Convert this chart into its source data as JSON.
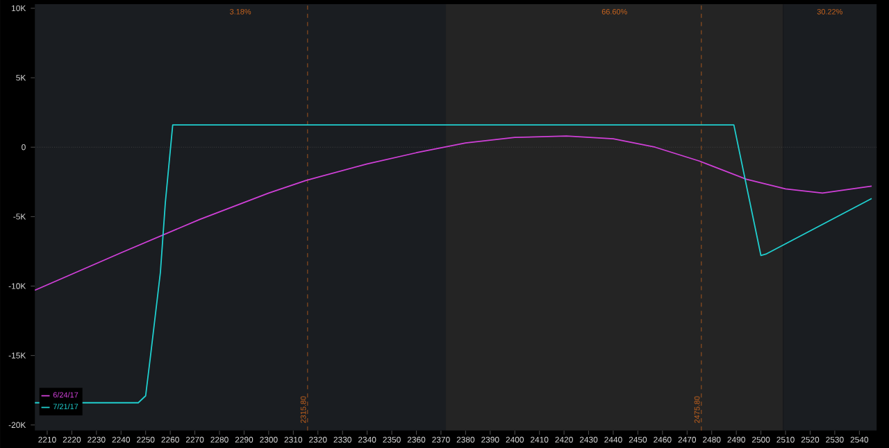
{
  "chart_data": {
    "type": "line",
    "x": [
      2205,
      2247,
      2250,
      2252,
      2256,
      2258,
      2261,
      2489,
      2500,
      2502,
      2545
    ],
    "series": [
      {
        "name": "6/24/17",
        "color": "#d040d8",
        "x": [
          2205,
          2240,
          2272,
          2300,
          2315,
          2340,
          2360,
          2380,
          2400,
          2421,
          2440,
          2457,
          2475,
          2494,
          2510,
          2525,
          2545
        ],
        "values": [
          -10300,
          -7600,
          -5200,
          -3300,
          -2400,
          -1200,
          -400,
          300,
          700,
          800,
          600,
          0,
          -1000,
          -2300,
          -3000,
          -3300,
          -2800
        ]
      },
      {
        "name": "7/21/17",
        "color": "#20d0d0",
        "values": [
          -18400,
          -18400,
          -17900,
          -15000,
          -9000,
          -4000,
          1600,
          1600,
          -7800,
          -7700,
          -3700
        ]
      }
    ],
    "xlim": [
      2205,
      2547
    ],
    "ylim": [
      -20400,
      10300
    ],
    "xticks": [
      2210,
      2220,
      2230,
      2240,
      2250,
      2260,
      2270,
      2280,
      2290,
      2300,
      2310,
      2320,
      2330,
      2340,
      2350,
      2360,
      2370,
      2380,
      2390,
      2400,
      2410,
      2420,
      2430,
      2440,
      2450,
      2460,
      2470,
      2480,
      2490,
      2500,
      2510,
      2520,
      2530,
      2540
    ],
    "yticks": [
      {
        "value": 10000,
        "label": "10K"
      },
      {
        "value": 5000,
        "label": "5K"
      },
      0,
      {
        "value": -5000,
        "label": "-5K"
      },
      {
        "value": -10000,
        "label": "-10K"
      },
      {
        "value": -15000,
        "label": "-15K"
      },
      {
        "value": -20000,
        "label": "-20K"
      }
    ],
    "ref_lines": [
      {
        "axis": "x",
        "value": 2315.8,
        "label": "2315.80",
        "color": "#c8641e",
        "line_style": "dashed"
      },
      {
        "axis": "x",
        "value": 2475.8,
        "label": "2475.80",
        "color": "#c8641e",
        "line_style": "dashed"
      },
      {
        "axis": "y",
        "value": 0,
        "color": "#555555",
        "line_style": "dotted"
      }
    ],
    "bands": [
      {
        "axis": "x",
        "from": 2205,
        "to": 2372,
        "label": "3.18%",
        "color": "#1a1d21"
      },
      {
        "axis": "x",
        "from": 2372,
        "to": 2509,
        "label": "66.60%",
        "color": "#242424"
      },
      {
        "axis": "x",
        "from": 2509,
        "to": 2547,
        "label": "30.22%",
        "color": "#1a1d21"
      }
    ],
    "legend": "bottom left",
    "grid": false,
    "marker": "none",
    "line_style": "solid"
  }
}
